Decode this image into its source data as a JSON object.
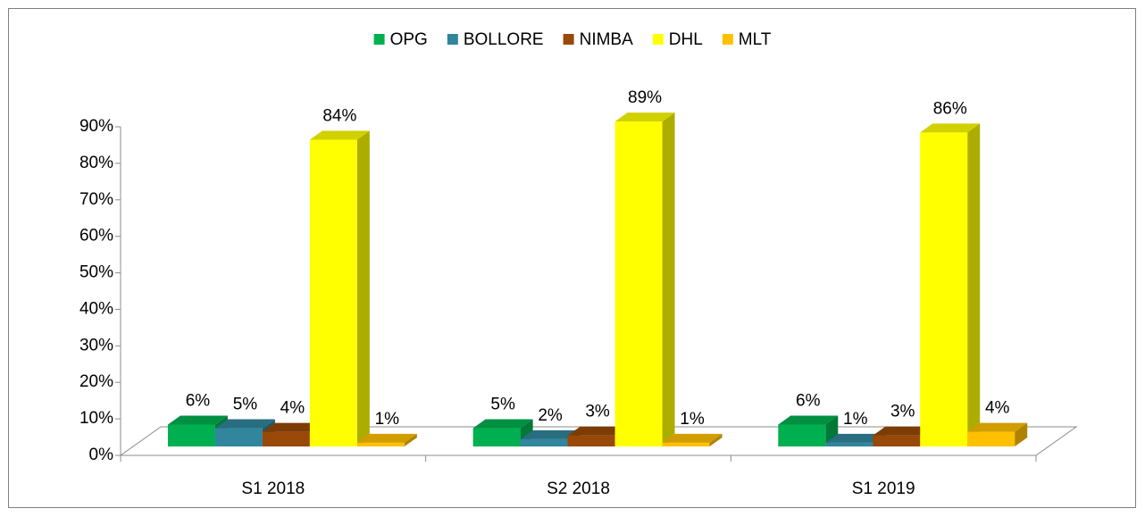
{
  "chart_data": {
    "type": "bar3d",
    "categories": [
      "S1 2018",
      "S2 2018",
      "S1 2019"
    ],
    "series": [
      {
        "name": "OPG",
        "color": "#00b050",
        "values": [
          6,
          5,
          6
        ],
        "value_labels": [
          "6%",
          "5%",
          "6%"
        ]
      },
      {
        "name": "BOLLORE",
        "color": "#31859c",
        "values": [
          5,
          2,
          1
        ],
        "value_labels": [
          "5%",
          "2%",
          "1%"
        ]
      },
      {
        "name": "NIMBA",
        "color": "#984807",
        "values": [
          4,
          3,
          3
        ],
        "value_labels": [
          "4%",
          "3%",
          "3%"
        ]
      },
      {
        "name": "DHL",
        "color": "#ffff00",
        "values": [
          84,
          89,
          86
        ],
        "value_labels": [
          "84%",
          "89%",
          "86%"
        ]
      },
      {
        "name": "MLT",
        "color": "#ffc000",
        "values": [
          1,
          1,
          4
        ],
        "value_labels": [
          "1%",
          "1%",
          "4%"
        ]
      }
    ],
    "ylim": [
      0,
      90
    ],
    "yticks": [
      {
        "value": 0,
        "label": "0%"
      },
      {
        "value": 10,
        "label": "10%"
      },
      {
        "value": 20,
        "label": "20%"
      },
      {
        "value": 30,
        "label": "30%"
      },
      {
        "value": 40,
        "label": "40%"
      },
      {
        "value": 50,
        "label": "50%"
      },
      {
        "value": 60,
        "label": "60%"
      },
      {
        "value": 70,
        "label": "70%"
      },
      {
        "value": 80,
        "label": "80%"
      },
      {
        "value": 90,
        "label": "90%"
      }
    ],
    "legend": "top"
  }
}
